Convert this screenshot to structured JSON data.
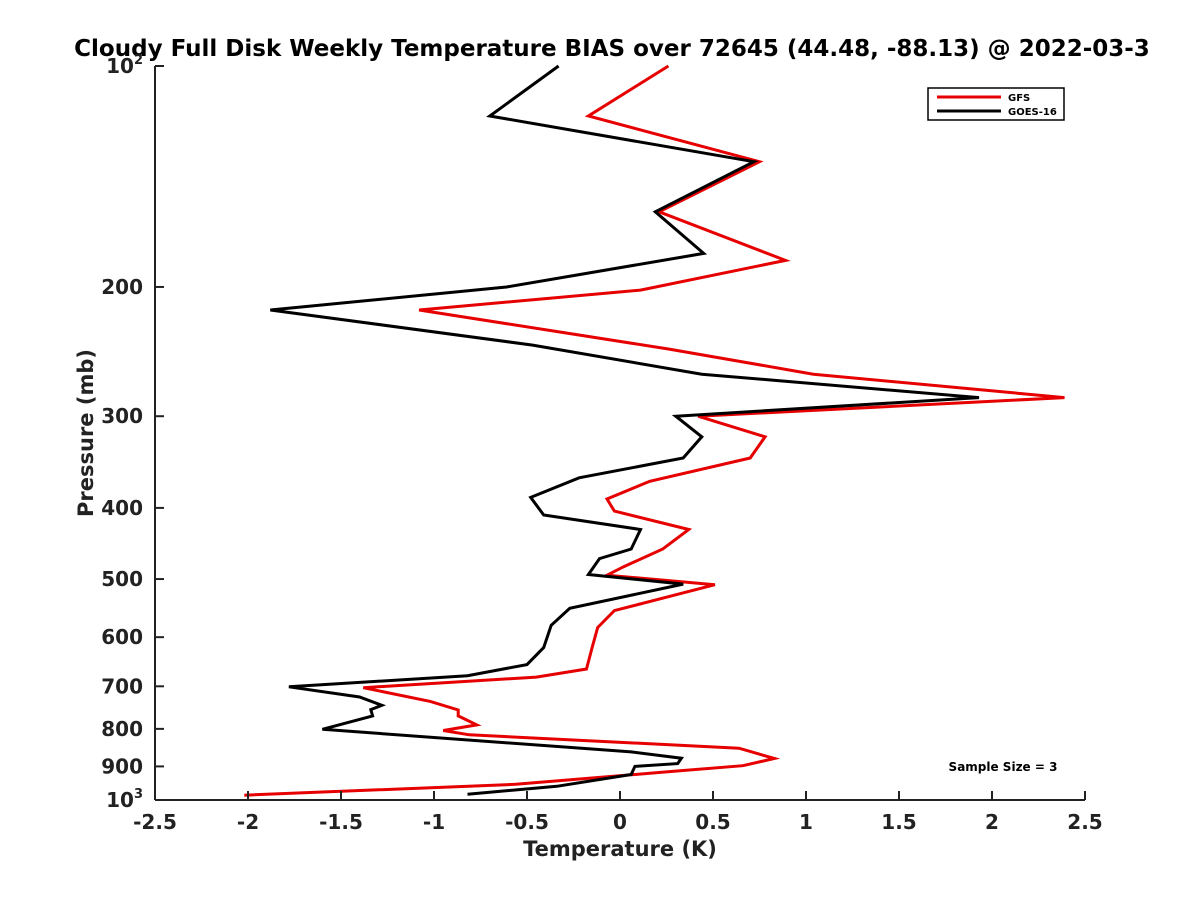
{
  "chart_data": {
    "type": "line",
    "title": "Cloudy Full Disk Weekly Temperature BIAS over 72645 (44.48, -88.13) @ 2022-03-3",
    "xlabel": "Temperature (K)",
    "ylabel": "Pressure (mb)",
    "xlim": [
      -2.5,
      2.5
    ],
    "ylim": [
      100,
      1000
    ],
    "y_scale": "log",
    "y_reversed": true,
    "grid": false,
    "x_ticks": [
      {
        "value": -2.5,
        "label": "-2.5"
      },
      {
        "value": -2,
        "label": "-2"
      },
      {
        "value": -1.5,
        "label": "-1.5"
      },
      {
        "value": -1,
        "label": "-1"
      },
      {
        "value": -0.5,
        "label": "-0.5"
      },
      {
        "value": 0,
        "label": "0"
      },
      {
        "value": 0.5,
        "label": "0.5"
      },
      {
        "value": 1,
        "label": "1"
      },
      {
        "value": 1.5,
        "label": "1.5"
      },
      {
        "value": 2,
        "label": "2"
      },
      {
        "value": 2.5,
        "label": "2.5"
      }
    ],
    "y_ticks": [
      {
        "value": 100,
        "base": "10",
        "exp": "2"
      },
      {
        "value": 200,
        "label": "200"
      },
      {
        "value": 300,
        "label": "300"
      },
      {
        "value": 400,
        "label": "400"
      },
      {
        "value": 500,
        "label": "500"
      },
      {
        "value": 600,
        "label": "600"
      },
      {
        "value": 700,
        "label": "700"
      },
      {
        "value": 800,
        "label": "800"
      },
      {
        "value": 900,
        "label": "900"
      },
      {
        "value": 1000,
        "base": "10",
        "exp": "3"
      }
    ],
    "legend": {
      "placement": "top-right",
      "entries": [
        {
          "label": "GFS",
          "color": "#e60000"
        },
        {
          "label": "GOES-16",
          "color": "#000000"
        }
      ]
    },
    "annotation": "Sample Size = 3",
    "series": [
      {
        "name": "GFS",
        "color": "#e60000",
        "points": [
          {
            "x": 0.26,
            "y": 100
          },
          {
            "x": -0.17,
            "y": 117
          },
          {
            "x": 0.75,
            "y": 135
          },
          {
            "x": 0.21,
            "y": 158
          },
          {
            "x": 0.89,
            "y": 184
          },
          {
            "x": 0.11,
            "y": 202
          },
          {
            "x": -1.08,
            "y": 215
          },
          {
            "x": 0.26,
            "y": 243
          },
          {
            "x": 1.04,
            "y": 263
          },
          {
            "x": 2.39,
            "y": 283
          },
          {
            "x": 0.42,
            "y": 300
          },
          {
            "x": 0.78,
            "y": 320
          },
          {
            "x": 0.7,
            "y": 342
          },
          {
            "x": 0.16,
            "y": 368
          },
          {
            "x": -0.07,
            "y": 389
          },
          {
            "x": -0.03,
            "y": 404
          },
          {
            "x": 0.37,
            "y": 428
          },
          {
            "x": 0.23,
            "y": 455
          },
          {
            "x": 0.02,
            "y": 481
          },
          {
            "x": -0.07,
            "y": 494
          },
          {
            "x": 0.51,
            "y": 509
          },
          {
            "x": -0.03,
            "y": 552
          },
          {
            "x": -0.12,
            "y": 582
          },
          {
            "x": -0.15,
            "y": 620
          },
          {
            "x": -0.18,
            "y": 663
          },
          {
            "x": -0.45,
            "y": 680
          },
          {
            "x": -1.38,
            "y": 703
          },
          {
            "x": -1.02,
            "y": 734
          },
          {
            "x": -0.87,
            "y": 754
          },
          {
            "x": -0.87,
            "y": 768
          },
          {
            "x": -0.77,
            "y": 790
          },
          {
            "x": -0.95,
            "y": 804
          },
          {
            "x": -0.81,
            "y": 815
          },
          {
            "x": 0.64,
            "y": 850
          },
          {
            "x": 0.83,
            "y": 878
          },
          {
            "x": 0.66,
            "y": 898
          },
          {
            "x": 0.29,
            "y": 914
          },
          {
            "x": -0.56,
            "y": 952
          },
          {
            "x": -2.02,
            "y": 985
          }
        ]
      },
      {
        "name": "GOES-16",
        "color": "#000000",
        "points": [
          {
            "x": -0.33,
            "y": 100
          },
          {
            "x": -0.7,
            "y": 117
          },
          {
            "x": 0.72,
            "y": 135
          },
          {
            "x": 0.19,
            "y": 158
          },
          {
            "x": 0.45,
            "y": 180
          },
          {
            "x": -0.61,
            "y": 200
          },
          {
            "x": -1.88,
            "y": 215
          },
          {
            "x": -0.47,
            "y": 240
          },
          {
            "x": 0.44,
            "y": 263
          },
          {
            "x": 1.93,
            "y": 283
          },
          {
            "x": 0.3,
            "y": 300
          },
          {
            "x": 0.44,
            "y": 320
          },
          {
            "x": 0.34,
            "y": 342
          },
          {
            "x": -0.22,
            "y": 364
          },
          {
            "x": -0.48,
            "y": 387
          },
          {
            "x": -0.41,
            "y": 409
          },
          {
            "x": 0.11,
            "y": 428
          },
          {
            "x": 0.06,
            "y": 455
          },
          {
            "x": -0.11,
            "y": 469
          },
          {
            "x": -0.17,
            "y": 493
          },
          {
            "x": 0.34,
            "y": 508
          },
          {
            "x": -0.27,
            "y": 548
          },
          {
            "x": -0.37,
            "y": 578
          },
          {
            "x": -0.41,
            "y": 620
          },
          {
            "x": -0.5,
            "y": 654
          },
          {
            "x": -0.82,
            "y": 677
          },
          {
            "x": -1.78,
            "y": 701
          },
          {
            "x": -1.4,
            "y": 724
          },
          {
            "x": -1.28,
            "y": 743
          },
          {
            "x": -1.34,
            "y": 753
          },
          {
            "x": -1.33,
            "y": 768
          },
          {
            "x": -1.6,
            "y": 801
          },
          {
            "x": 0.06,
            "y": 860
          },
          {
            "x": 0.33,
            "y": 877
          },
          {
            "x": 0.31,
            "y": 892
          },
          {
            "x": 0.08,
            "y": 900
          },
          {
            "x": 0.06,
            "y": 923
          },
          {
            "x": -0.34,
            "y": 958
          },
          {
            "x": -0.82,
            "y": 982
          }
        ]
      }
    ]
  }
}
